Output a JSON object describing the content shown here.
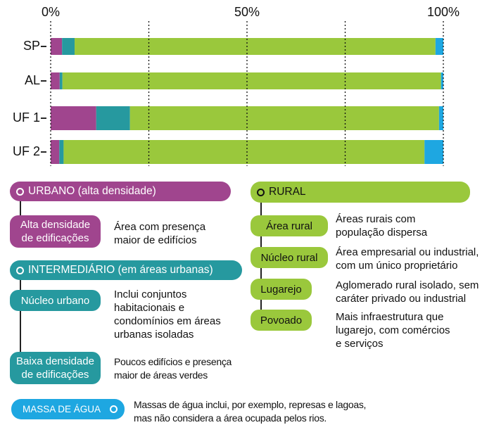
{
  "chart_data": {
    "type": "stacked_barh",
    "categories": [
      "SP",
      "AL",
      "UF 1",
      "UF 2"
    ],
    "series": [
      {
        "name": "URBANO (alta densidade)",
        "color": "#a0458e",
        "values": [
          2.9,
          2.3,
          11.6,
          2.2
        ]
      },
      {
        "name": "INTERMEDIÁRIO (em áreas urbanas)",
        "color": "#26999f",
        "values": [
          3.2,
          0.7,
          8.6,
          1.1
        ]
      },
      {
        "name": "RURAL",
        "color": "#9ac83c",
        "values": [
          91.9,
          96.4,
          78.7,
          91.9
        ]
      },
      {
        "name": "MASSA DE ÁGUA",
        "color": "#1ea7e1",
        "values": [
          2.0,
          0.6,
          1.1,
          4.8
        ]
      }
    ],
    "xlim": [
      0,
      100
    ],
    "xticks": [
      {
        "value": 0,
        "label": "0%"
      },
      {
        "value": 50,
        "label": "50%"
      },
      {
        "value": 100,
        "label": "100%"
      }
    ],
    "grid_lines": [
      0,
      25,
      50,
      75,
      100
    ]
  },
  "legend": {
    "urbano": [
      {
        "label": "Alta densidade\nde edificações",
        "desc": "Área com presença\nmaior de edifícios"
      }
    ],
    "intermediario": [
      {
        "label": "Núcleo urbano",
        "desc": "Inclui conjuntos\nhabitacionais e\ncondomínios em áreas\nurbanas isoladas"
      },
      {
        "label": "Baixa densidade\nde edificações",
        "desc": "Poucos edifícios e presença\nmaior de áreas verdes"
      }
    ],
    "rural": [
      {
        "label": "Área rural",
        "desc": "Áreas rurais com\npopulação dispersa"
      },
      {
        "label": "Núcleo rural",
        "desc": "Área empresarial ou industrial,\ncom um único proprietário"
      },
      {
        "label": "Lugarejo",
        "desc": "Aglomerado rural isolado, sem\ncaráter privado ou industrial"
      },
      {
        "label": "Povoado",
        "desc": "Mais infraestrutura que\nlugarejo, com comércios\ne serviços"
      }
    ],
    "agua": {
      "desc": "Massas de água inclui, por exemplo, represas e lagoas,\nmas não considera a área ocupada pelos rios."
    }
  }
}
